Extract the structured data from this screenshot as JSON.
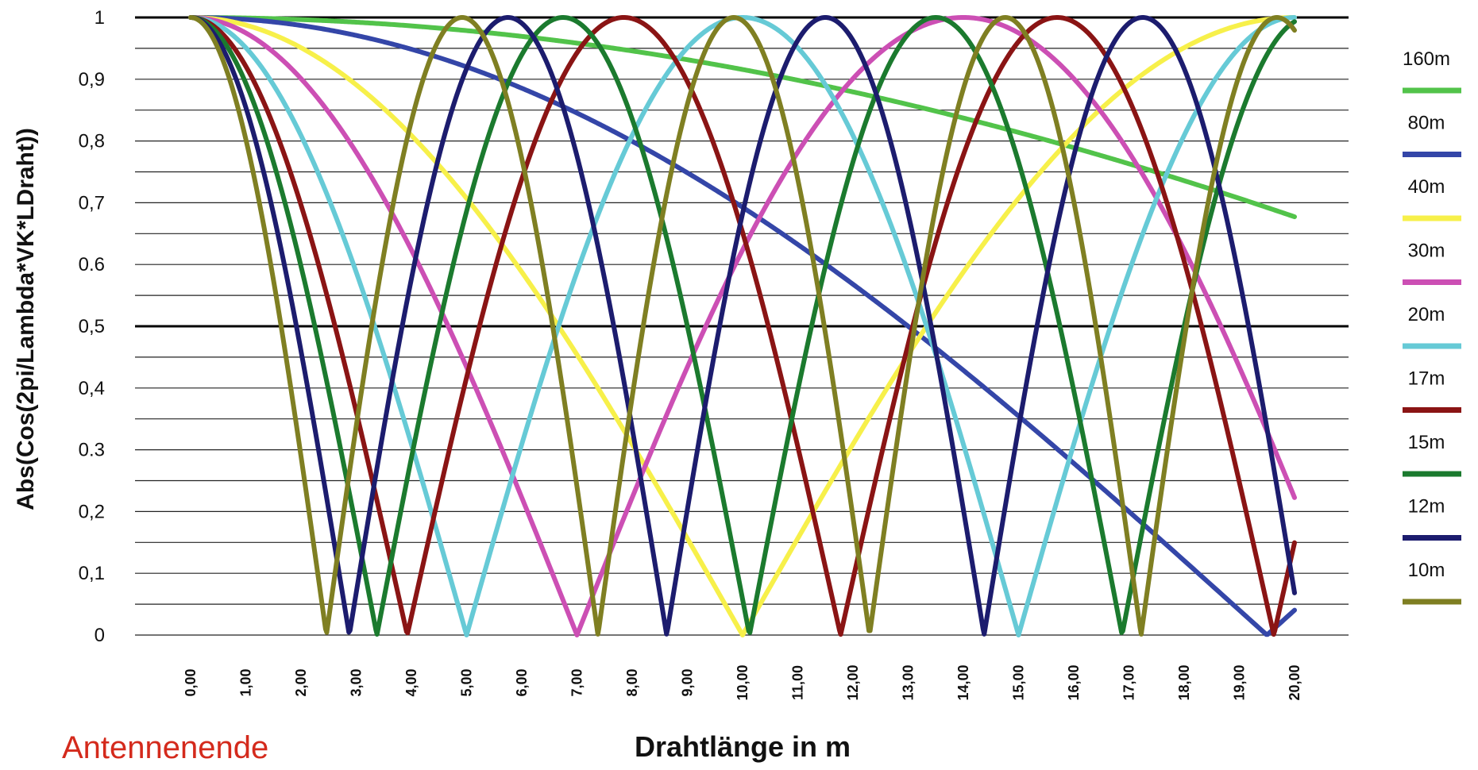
{
  "chart_data": {
    "type": "line",
    "xlabel": "Drahtlänge in m",
    "ylabel": "Abs(Cos(2pi/Lambda*VK*LDraht))",
    "annotation": "Antennenende",
    "xlim": [
      0,
      20
    ],
    "ylim": [
      0,
      1
    ],
    "x_ticks": [
      "0,00",
      "1,00",
      "2,00",
      "3,00",
      "4,00",
      "5,00",
      "6,00",
      "7,00",
      "8,00",
      "9,00",
      "10,00",
      "11,00",
      "12,00",
      "13,00",
      "14,00",
      "15,00",
      "16,00",
      "17,00",
      "18,00",
      "19,00",
      "20,00"
    ],
    "y_ticks": [
      {
        "value": 0,
        "label": "0"
      },
      {
        "value": 0.1,
        "label": "0,1"
      },
      {
        "value": 0.2,
        "label": "0,2"
      },
      {
        "value": 0.3,
        "label": "0.3"
      },
      {
        "value": 0.4,
        "label": "0,4"
      },
      {
        "value": 0.5,
        "label": "0,5"
      },
      {
        "value": 0.6,
        "label": "0.6"
      },
      {
        "value": 0.7,
        "label": "0,7"
      },
      {
        "value": 0.8,
        "label": "0,8"
      },
      {
        "value": 0.9,
        "label": "0,9"
      },
      {
        "value": 1,
        "label": "1"
      }
    ],
    "grid_step": 0.05,
    "bold_gridlines": [
      0.5,
      1
    ],
    "grid": true,
    "legend_position": "right",
    "series_formula": "abs(cos(2*pi/lambda*VK*x))",
    "series": [
      {
        "name": "160m",
        "zero_spacing_m": 76.0,
        "color": "#52c34a"
      },
      {
        "name": "80m",
        "zero_spacing_m": 39.0,
        "color": "#3446a8"
      },
      {
        "name": "40m",
        "zero_spacing_m": 20.0,
        "color": "#f7f04a"
      },
      {
        "name": "30m",
        "zero_spacing_m": 14.0,
        "color": "#cc4fb4"
      },
      {
        "name": "20m",
        "zero_spacing_m": 10.0,
        "color": "#66cad6"
      },
      {
        "name": "17m",
        "zero_spacing_m": 7.85,
        "color": "#8a1414"
      },
      {
        "name": "15m",
        "zero_spacing_m": 6.75,
        "color": "#1b7a2e"
      },
      {
        "name": "12m",
        "zero_spacing_m": 5.75,
        "color": "#1c1c6e"
      },
      {
        "name": "10m",
        "zero_spacing_m": 4.92,
        "color": "#7f7f22"
      }
    ]
  }
}
